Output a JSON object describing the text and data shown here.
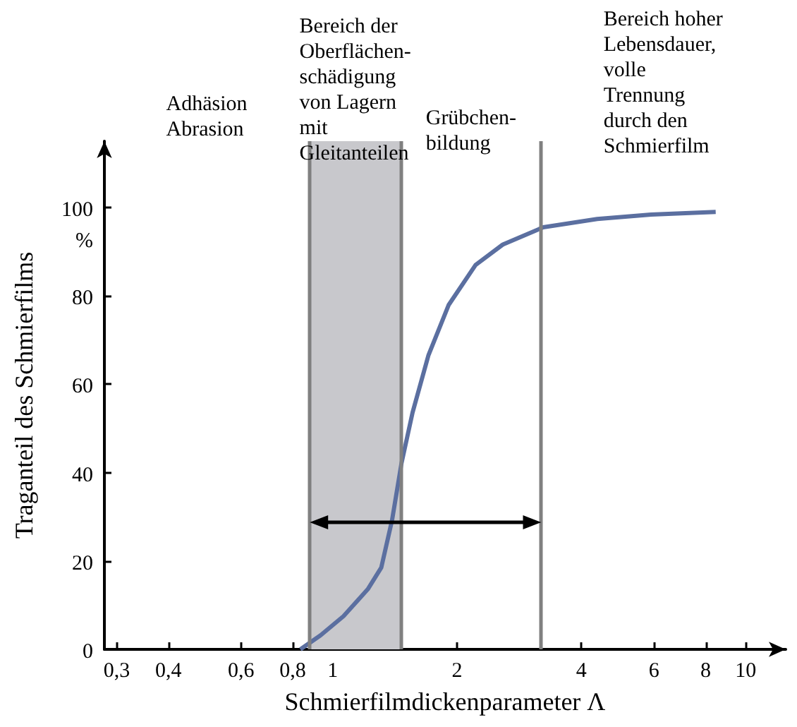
{
  "chart_data": {
    "type": "line",
    "xlabel": "Schmierfilmdickenparameter Λ",
    "ylabel": "Traganteil des Schmierfilms",
    "log": "x",
    "grid": false,
    "marker": "none",
    "line_style": "solid",
    "xlim": [
      0.28,
      12.5
    ],
    "xticks": [
      {
        "value": 0.3,
        "label": "0,3"
      },
      {
        "value": 0.4,
        "label": "0,4"
      },
      {
        "value": 0.6,
        "label": "0,6"
      },
      {
        "value": 0.8,
        "label": "0,8"
      },
      1,
      2,
      4,
      6,
      8,
      10
    ],
    "ylim": [
      0,
      115
    ],
    "yticks": [
      0,
      20,
      40,
      60,
      80,
      {
        "value": 100,
        "label": "100\n%"
      }
    ],
    "x": [
      0.835,
      0.935,
      1.062,
      1.216,
      1.311,
      1.392,
      1.468,
      1.561,
      1.706,
      1.908,
      2.218,
      2.581,
      3.234,
      4.37,
      5.9,
      8.46
    ],
    "series": [
      {
        "color": "#5b6fa0",
        "values": [
          0,
          3.2,
          7.5,
          13.6,
          18.5,
          29.2,
          42.2,
          53.6,
          66.6,
          77.9,
          87,
          91.6,
          95.5,
          97.4,
          98.4,
          99
        ]
      }
    ],
    "ref_lines": [
      {
        "axis": "x",
        "value": 0.88,
        "color": "#808080"
      },
      {
        "axis": "x",
        "value": 1.46,
        "color": "#808080"
      },
      {
        "axis": "x",
        "value": 3.2,
        "color": "#808080"
      }
    ],
    "bands": [
      {
        "axis": "x",
        "from": 0.88,
        "to": 1.46,
        "color": "#c8c8cc"
      }
    ],
    "annotations": [
      "Adhäsion\nAbrasion",
      "Bereich der\nOberflächen-\nschädigung\nvon Lagern\nmit\nGleitanteilen",
      "Grübchen-\nbildung",
      "Bereich hoher\nLebensdauer,\nvolle\nTrennung\ndurch den\nSchmierfilm"
    ]
  }
}
